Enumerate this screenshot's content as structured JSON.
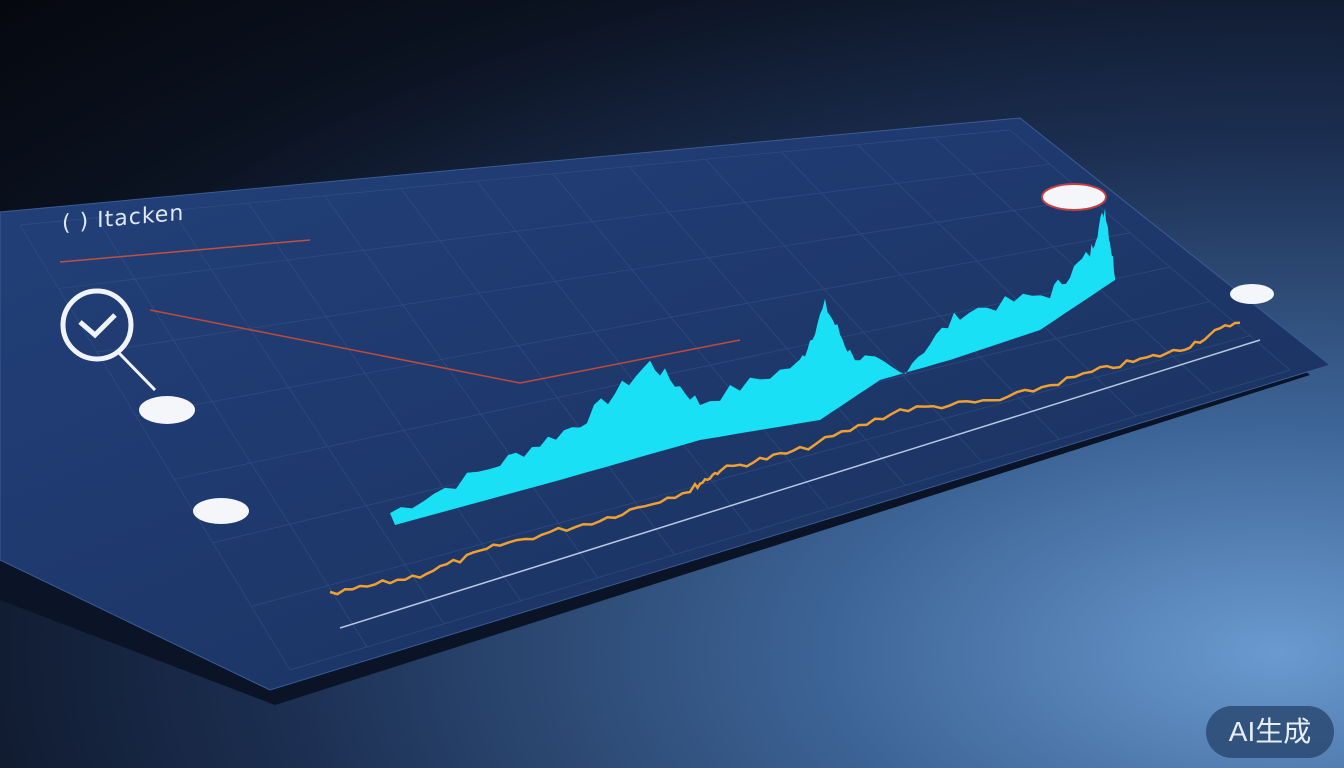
{
  "dashboard": {
    "title": "( ) Itacken"
  },
  "colors": {
    "panel": "#1a3260",
    "wave": "#19e0f5",
    "line": "#f0a030",
    "accent_line": "#d05040"
  },
  "watermark": {
    "label": "AI生成"
  }
}
